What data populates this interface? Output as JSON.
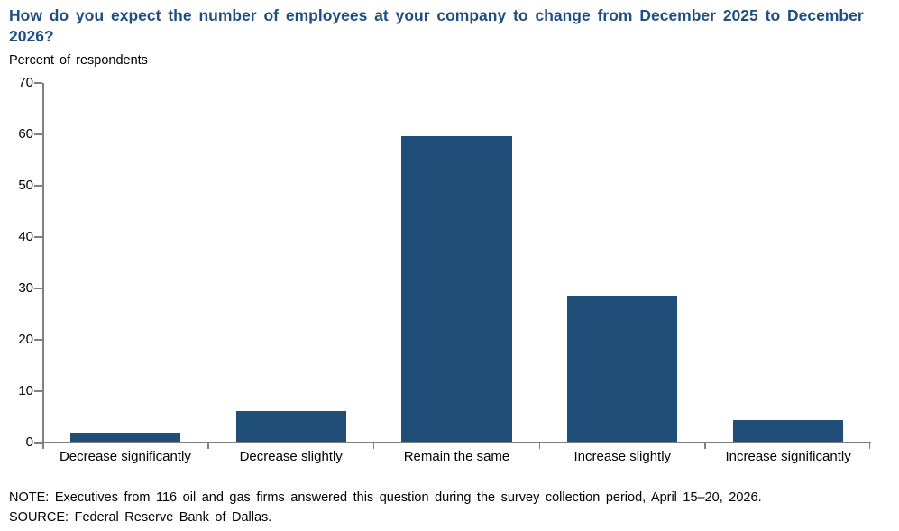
{
  "title": "How do you expect the number of employees at your company to change from December 2025 to December 2026?",
  "subtitle": "Percent of respondents",
  "note": "NOTE:  Executives from 116 oil and gas firms answered this question during the survey collection period, April 15–20, 2026.",
  "source": "SOURCE:  Federal Reserve Bank of Dallas.",
  "colors": {
    "title": "#1F4E82",
    "bar": "#1F4E79",
    "axis": "#808080",
    "text": "#000000"
  },
  "chart_data": {
    "type": "bar",
    "categories": [
      "Decrease significantly",
      "Decrease slightly",
      "Remain the same",
      "Increase slightly",
      "Increase significantly"
    ],
    "values": [
      1.7,
      6.0,
      59.5,
      28.4,
      4.3
    ],
    "title": "How do you expect the number of employees at your company to change from December 2025 to December 2026?",
    "xlabel": "",
    "ylabel": "Percent of respondents",
    "ylim": [
      0,
      70
    ],
    "yticks": [
      0,
      10,
      20,
      30,
      40,
      50,
      60,
      70
    ],
    "grid": false,
    "legend": false,
    "bar_color": "#1F4E79"
  }
}
